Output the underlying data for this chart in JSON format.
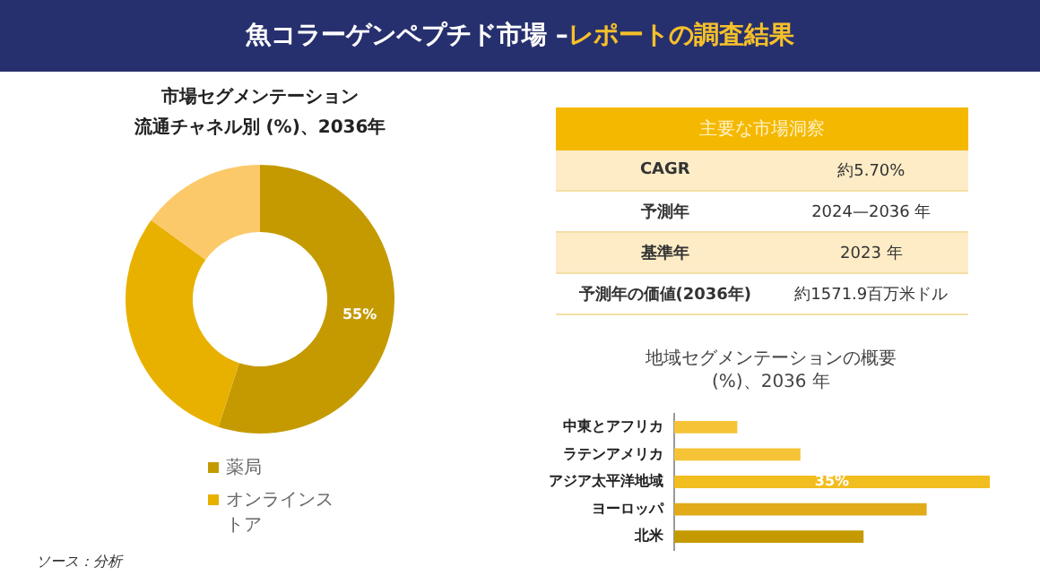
{
  "chart_data": [
    {
      "type": "other",
      "title": "魚コラーゲンペプチド市場 –",
      "subtitle": "レポートの調査結果"
    },
    {
      "type": "donut",
      "title": "市場セグメンテーション",
      "subtitle": "流通チャネル別 (%)、2036年",
      "categories": [
        "薬局",
        "オンラインストア",
        null
      ],
      "values": [
        55,
        30,
        15
      ],
      "colors": [
        "#c49a00",
        "#e8b100",
        "#fcc96a"
      ],
      "value_labels": [
        "55%",
        null,
        null
      ],
      "legend": "bottom",
      "annotations": [
        "ソース：分析"
      ]
    },
    {
      "type": "other",
      "title": "主要な市場洞察",
      "annotations": [
        "CAGR",
        "約5.70%",
        "予測年",
        "2024—2036 年",
        "基準年",
        "2023 年",
        "予測年の価値(2036年)",
        "約1571.9百万米ドル"
      ]
    },
    {
      "type": "bar",
      "orientation": "horizontal",
      "title": "地域セグメンテーションの概要 (%)、2036 年",
      "categories": [
        "中東とアフリカ",
        "ラテンアメリカ",
        "アジア太平洋地域",
        "ヨーロッパ",
        "北米"
      ],
      "values": [
        7,
        14,
        35,
        28,
        21
      ],
      "colors": [
        "#f5c335",
        "#f5c335",
        "#f2bd1f",
        "#e0aa18",
        "#c49a00"
      ],
      "value_labels": [
        null,
        null,
        "35%",
        null,
        null
      ],
      "xlim": [
        0,
        35
      ],
      "tick_labels": "y",
      "legend": false
    }
  ]
}
